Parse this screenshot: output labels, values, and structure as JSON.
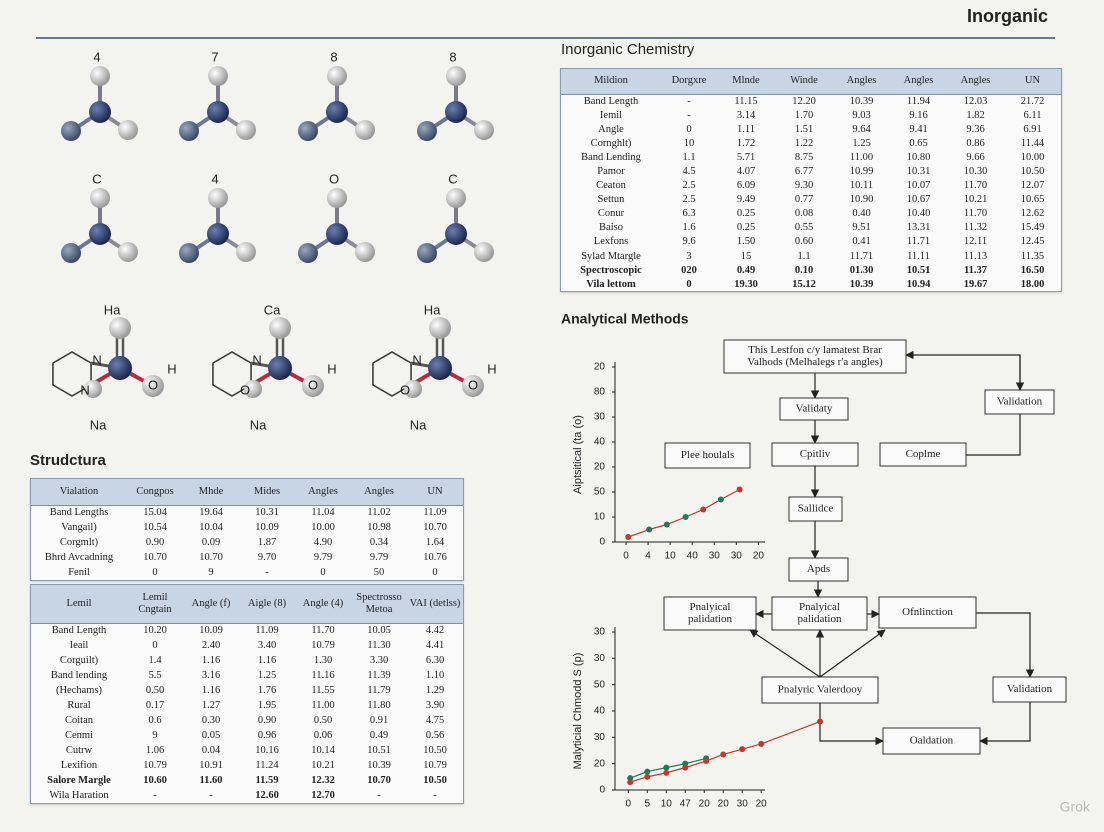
{
  "header": {
    "title": "Inorganic"
  },
  "molecules": {
    "grid_labels": [
      "4",
      "7",
      "8",
      "8",
      "C",
      "4",
      "O",
      "C"
    ],
    "structures": [
      {
        "labels": [
          "Ha",
          "N",
          "N",
          "O",
          "H",
          "Na"
        ]
      },
      {
        "labels": [
          "Ca",
          "N",
          "O",
          "O",
          "H",
          "Na"
        ]
      },
      {
        "labels": [
          "Ha",
          "N",
          "O",
          "O",
          "H",
          "Na"
        ]
      }
    ]
  },
  "structure_section": {
    "title": "Strudctura",
    "tables": [
      {
        "columns": [
          "Vialation",
          "Congpos",
          "Mhde",
          "Mides",
          "Angles",
          "Angles",
          "UN"
        ],
        "rows": [
          [
            "Band Lengths",
            "15.04",
            "19.64",
            "10.31",
            "11.04",
            "11.02",
            "11.09"
          ],
          [
            "Vangail)",
            "10.54",
            "10.04",
            "10.09",
            "10.00",
            "10.98",
            "10.70"
          ],
          [
            "Corgmlt)",
            "0.90",
            "0.09",
            "1.87",
            "4.90",
            "0.34",
            "1.64"
          ],
          [
            "Bhrd Avcadning",
            "10.70",
            "10.70",
            "9.70",
            "9.79",
            "9.79",
            "10.76"
          ],
          [
            "Fenil",
            "0",
            "9",
            "-",
            "0",
            "50",
            "0"
          ]
        ]
      },
      {
        "columns": [
          "Lemil",
          "Lemil Cngtain",
          "Angle (f)",
          "Aigle (8)",
          "Angle (4)",
          "Spectrosso Metoa",
          "VAI (detlss)"
        ],
        "rows": [
          [
            "Band Length",
            "10.20",
            "10.09",
            "11.09",
            "11.70",
            "10.05",
            "4.42"
          ],
          [
            "Ieail",
            "0",
            "2.40",
            "3.40",
            "10.79",
            "11.30",
            "4.41"
          ],
          [
            "Corguilt)",
            "1.4",
            "1.16",
            "1.16",
            "1.30",
            "3.30",
            "6.30"
          ],
          [
            "Band lending",
            "5.5",
            "3.16",
            "1.25",
            "11.16",
            "11.39",
            "1.10"
          ],
          [
            "(Hechams)",
            "0.50",
            "1.16",
            "1.76",
            "11.55",
            "11.79",
            "1.29"
          ],
          [
            "Rural",
            "0.17",
            "1.27",
            "1.95",
            "11.00",
            "11.80",
            "3.90"
          ],
          [
            "Coitan",
            "0.6",
            "0.30",
            "0.90",
            "0.50",
            "0.91",
            "4.75"
          ],
          [
            "Cenmi",
            "9",
            "0.05",
            "0.96",
            "0.06",
            "0.49",
            "0.56"
          ],
          [
            "Cutrw",
            "1.06",
            "0.04",
            "10.16",
            "10.14",
            "10.51",
            "10.50"
          ],
          [
            "Lexifion",
            "10.79",
            "10.91",
            "11.24",
            "10.21",
            "10.39",
            "10.79"
          ],
          [
            "Salore Margle",
            "10.60",
            "11.60",
            "11.59",
            "12.32",
            "10.70",
            "10.50"
          ],
          [
            "Wila Haration",
            "-",
            "-",
            "12.60",
            "12.70",
            "-",
            "-"
          ]
        ]
      }
    ]
  },
  "chemistry_section": {
    "title": "Inorganic Chemistry",
    "table": {
      "columns": [
        "Mildion",
        "Dorgxre",
        "Mlnde",
        "Winde",
        "Angles",
        "Angles",
        "Angles",
        "UN"
      ],
      "rows": [
        [
          "Band Length",
          "-",
          "11.15",
          "12.20",
          "10.39",
          "11.94",
          "12.03",
          "21.72"
        ],
        [
          "Iemil",
          "-",
          "3.14",
          "1.70",
          "9.03",
          "9.16",
          "1.82",
          "6.11"
        ],
        [
          "Angle",
          "0",
          "1.11",
          "1.51",
          "9.64",
          "9.41",
          "9.36",
          "6.91"
        ],
        [
          "Cornghlt)",
          "10",
          "1.72",
          "1.22",
          "1.25",
          "0.65",
          "0.86",
          "11.44"
        ],
        [
          "Band Lending",
          "1.1",
          "5.71",
          "8.75",
          "11.00",
          "10.80",
          "9.66",
          "10.00"
        ],
        [
          "Pamor",
          "4.5",
          "4.07",
          "6.77",
          "10.99",
          "10.31",
          "10.30",
          "10.50"
        ],
        [
          "Ceaton",
          "2.5",
          "6.09",
          "9.30",
          "10.11",
          "10.07",
          "11.70",
          "12.07"
        ],
        [
          "Settun",
          "2.5",
          "9.49",
          "0.77",
          "10.90",
          "10.67",
          "10.21",
          "10.65"
        ],
        [
          "Conur",
          "6.3",
          "0.25",
          "0.08",
          "0.40",
          "10.40",
          "11.70",
          "12.62"
        ],
        [
          "Baiso",
          "1.6",
          "0.25",
          "0.55",
          "9.51",
          "13.31",
          "11.32",
          "15.49"
        ],
        [
          "Lexfons",
          "9.6",
          "1.50",
          "0.60",
          "0.41",
          "11.71",
          "12.11",
          "12.45"
        ],
        [
          "Sylad Mtargle",
          "3",
          "15",
          "1.1",
          "11.71",
          "11.11",
          "11.13",
          "11.35"
        ],
        [
          "Spectroscopic",
          "020",
          "0.49",
          "0.10",
          "01.30",
          "10.51",
          "11.37",
          "16.50"
        ],
        [
          "Vila lettom",
          "0",
          "19.30",
          "15.12",
          "10.39",
          "10.94",
          "19.67",
          "18.00"
        ]
      ]
    }
  },
  "methods_section": {
    "title": "Analytical Methods",
    "flow_nodes": [
      {
        "lines": [
          "This Lestfon c/y lamatest Brar",
          "Valhods (Melhalegs r'a angles)"
        ]
      },
      {
        "lines": [
          "Validaty"
        ]
      },
      {
        "lines": [
          "Validation"
        ]
      },
      {
        "lines": [
          "Plee houlals"
        ]
      },
      {
        "lines": [
          "Cpitliv"
        ]
      },
      {
        "lines": [
          "Coplme"
        ]
      },
      {
        "lines": [
          "Sallidce"
        ]
      },
      {
        "lines": [
          "Apds"
        ]
      },
      {
        "lines": [
          "Pnalyical",
          "palidation"
        ]
      },
      {
        "lines": [
          "Pnalyical",
          "palidation"
        ]
      },
      {
        "lines": [
          "Ofnlinction"
        ]
      },
      {
        "lines": [
          "Pnalyric Valerdooy"
        ]
      },
      {
        "lines": [
          "Validation"
        ]
      },
      {
        "lines": [
          "Oaldation"
        ]
      }
    ]
  },
  "chart_data": [
    {
      "type": "line",
      "y_label": "Aiptsitical (ta (o)",
      "xlim": [
        -0.5,
        6.3
      ],
      "ylim": [
        0,
        7
      ],
      "xticks": [
        {
          "value": 0,
          "label": "0"
        },
        {
          "value": 1,
          "label": "4"
        },
        {
          "value": 2,
          "label": "10"
        },
        {
          "value": 3,
          "label": "40"
        },
        {
          "value": 4,
          "label": "30"
        },
        {
          "value": 5,
          "label": "30"
        },
        {
          "value": 6,
          "label": "20"
        }
      ],
      "yticks": [
        {
          "value": 0,
          "label": "0"
        },
        {
          "value": 1,
          "label": "10"
        },
        {
          "value": 2,
          "label": "50"
        },
        {
          "value": 3,
          "label": "20"
        },
        {
          "value": 4,
          "label": "40"
        },
        {
          "value": 5,
          "label": "30"
        },
        {
          "value": 6,
          "label": "80"
        },
        {
          "value": 7,
          "label": "20"
        }
      ],
      "series": [
        {
          "color": "#c0392b",
          "x": [
            0.1,
            1.05,
            1.85,
            2.7,
            3.5,
            4.3,
            5.15
          ],
          "values": [
            0.2,
            0.5,
            0.7,
            1.0,
            1.3,
            1.7,
            2.1
          ],
          "point_colors": [
            "#c0392b",
            "#1e7a5a",
            "#1e7a5a",
            "#1e7a5a",
            "#c0392b",
            "#1e7a5a",
            "#c0392b"
          ]
        }
      ]
    },
    {
      "type": "line",
      "y_label": "Malyticial Chmodd S (p)",
      "xlim": [
        -0.7,
        7.2
      ],
      "ylim": [
        0,
        6
      ],
      "xticks": [
        {
          "value": 0,
          "label": "0"
        },
        {
          "value": 1,
          "label": "5"
        },
        {
          "value": 2,
          "label": "10"
        },
        {
          "value": 3,
          "label": "47"
        },
        {
          "value": 4,
          "label": "20"
        },
        {
          "value": 5,
          "label": "20"
        },
        {
          "value": 6,
          "label": "30"
        },
        {
          "value": 7,
          "label": "20"
        }
      ],
      "yticks": [
        {
          "value": 0,
          "label": "0"
        },
        {
          "value": 1,
          "label": "20"
        },
        {
          "value": 2,
          "label": "30"
        },
        {
          "value": 3,
          "label": "40"
        },
        {
          "value": 4,
          "label": "50"
        },
        {
          "value": 5,
          "label": "30"
        },
        {
          "value": 6,
          "label": "30"
        }
      ],
      "series": [
        {
          "color": "#1e7a5a",
          "x": [
            0.1,
            1.0,
            2.0,
            3.0,
            4.1
          ],
          "values": [
            0.45,
            0.7,
            0.85,
            1.0,
            1.2
          ],
          "point_colors": [
            "#1e7a5a",
            "#1e7a5a",
            "#1e7a5a",
            "#1e7a5a",
            "#1e7a5a"
          ]
        },
        {
          "color": "#c0392b",
          "x": [
            0.1,
            1.0,
            2.0,
            3.0,
            4.1,
            5.0,
            6.0,
            7.0,
            10.1
          ],
          "values": [
            0.3,
            0.5,
            0.65,
            0.85,
            1.1,
            1.35,
            1.55,
            1.75,
            2.6
          ],
          "point_colors": [
            "#c0392b",
            "#c0392b",
            "#c0392b",
            "#c0392b",
            "#c0392b",
            "#c0392b",
            "#c0392b",
            "#c0392b",
            "#c0392b"
          ]
        }
      ]
    }
  ],
  "watermark": "Grok"
}
